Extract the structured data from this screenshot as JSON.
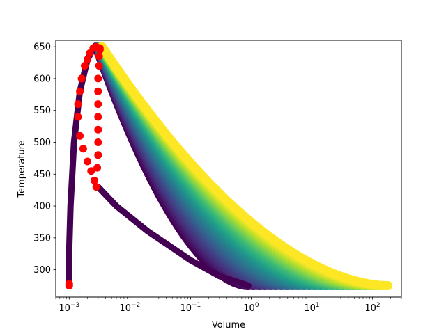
{
  "chart_data": {
    "type": "scatter",
    "title": "",
    "xlabel": "Volume",
    "ylabel": "Temperature",
    "xscale": "log",
    "xlim": [
      0.0006,
      300
    ],
    "ylim": [
      257,
      660
    ],
    "grid": false,
    "colormap": "viridis",
    "x_ticks": [
      {
        "value": 0.001,
        "mantissa": "10",
        "exp": "−3"
      },
      {
        "value": 0.01,
        "mantissa": "10",
        "exp": "−2"
      },
      {
        "value": 0.1,
        "mantissa": "10",
        "exp": "−1"
      },
      {
        "value": 1,
        "mantissa": "10",
        "exp": "0"
      },
      {
        "value": 10,
        "mantissa": "10",
        "exp": "1"
      },
      {
        "value": 100,
        "mantissa": "10",
        "exp": "2"
      }
    ],
    "y_ticks": [
      {
        "value": 300,
        "label": "300"
      },
      {
        "value": 350,
        "label": "350"
      },
      {
        "value": 400,
        "label": "400"
      },
      {
        "value": 450,
        "label": "450"
      },
      {
        "value": 500,
        "label": "500"
      },
      {
        "value": 550,
        "label": "550"
      },
      {
        "value": 600,
        "label": "600"
      },
      {
        "value": 650,
        "label": "650"
      }
    ],
    "series": [
      {
        "role": "colored-expansion-curves",
        "count": 26,
        "peak_temperature": 650,
        "start_temperature": 275,
        "curves": [
          {
            "peak_volume": 0.0028,
            "end_volume": 0.9,
            "color_value": 0.0
          },
          {
            "peak_volume": 0.0035,
            "end_volume": 180,
            "color_value": 1.0
          }
        ]
      },
      {
        "role": "lower-expansion-branch",
        "color": "#440154",
        "points": [
          [
            0.003,
            430
          ],
          [
            0.006,
            400
          ],
          [
            0.02,
            360
          ],
          [
            0.1,
            315
          ],
          [
            0.3,
            290
          ],
          [
            0.9,
            275
          ]
        ]
      },
      {
        "role": "liquid-line",
        "color": "#440154",
        "points": [
          [
            0.001,
            275
          ],
          [
            0.001,
            330
          ],
          [
            0.00105,
            400
          ],
          [
            0.0012,
            500
          ],
          [
            0.0015,
            580
          ],
          [
            0.002,
            630
          ],
          [
            0.0026,
            650
          ]
        ]
      },
      {
        "role": "saturation-points",
        "color": "#ff0000",
        "points": [
          [
            0.001,
            278
          ],
          [
            0.001,
            275
          ],
          [
            0.0018,
            620
          ],
          [
            0.002,
            630
          ],
          [
            0.0022,
            640
          ],
          [
            0.0025,
            648
          ],
          [
            0.0028,
            650
          ],
          [
            0.0016,
            600
          ],
          [
            0.0015,
            580
          ],
          [
            0.0014,
            560
          ],
          [
            0.0014,
            540
          ],
          [
            0.0015,
            510
          ],
          [
            0.0017,
            490
          ],
          [
            0.002,
            470
          ],
          [
            0.0023,
            455
          ],
          [
            0.0026,
            440
          ],
          [
            0.0028,
            430
          ],
          [
            0.0029,
            460
          ],
          [
            0.003,
            480
          ],
          [
            0.003,
            500
          ],
          [
            0.003,
            520
          ],
          [
            0.003,
            540
          ],
          [
            0.003,
            560
          ],
          [
            0.003,
            580
          ],
          [
            0.003,
            600
          ],
          [
            0.0031,
            620
          ],
          [
            0.0031,
            635
          ],
          [
            0.0032,
            645
          ],
          [
            0.0032,
            648
          ]
        ]
      }
    ]
  }
}
